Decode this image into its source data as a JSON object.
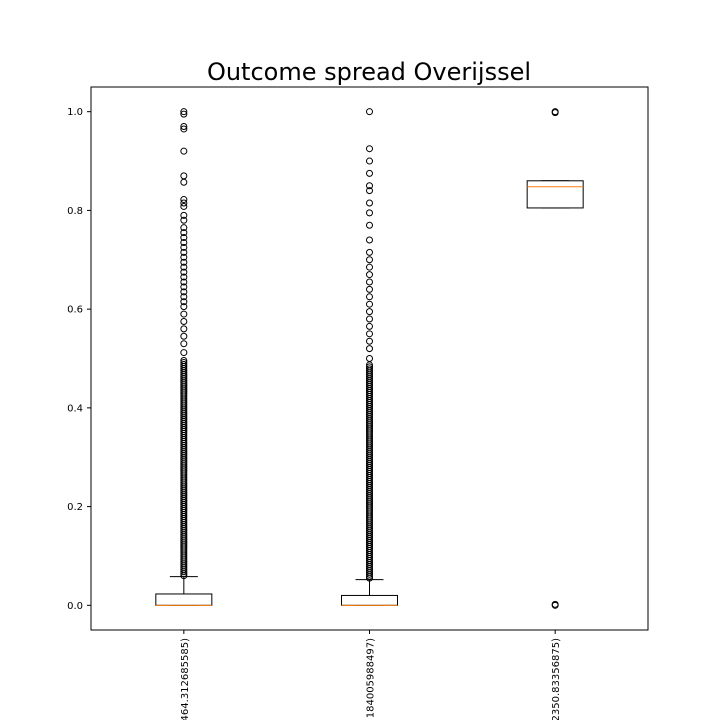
{
  "chart_data": {
    "type": "box",
    "title": "Outcome spread Overijssel",
    "xlabel": "",
    "ylabel": "",
    "ylim": [
      -0.05,
      1.05
    ],
    "yticks": [
      "0.0",
      "0.2",
      "0.4",
      "0.6",
      "0.8",
      "1.0"
    ],
    "grid": false,
    "categories": [
      "464.312685585)",
      "184005988497)",
      "2350.83356875)"
    ],
    "boxes": [
      {
        "q1": 0.0,
        "median": 0.0,
        "q3": 0.023,
        "whisker_low": 0.0,
        "whisker_high": 0.058,
        "fliers": [
          1.0,
          0.995,
          0.97,
          0.965,
          0.92,
          0.87,
          0.857,
          0.822,
          0.815,
          0.808,
          0.79,
          0.78,
          0.765,
          0.755,
          0.745,
          0.735,
          0.725,
          0.715,
          0.705,
          0.695,
          0.685,
          0.675,
          0.665,
          0.655,
          0.645,
          0.635,
          0.625,
          0.615,
          0.605,
          0.59,
          0.575,
          0.56,
          0.545,
          0.53,
          0.512
        ],
        "dense_flier_band": [
          0.06,
          0.5
        ]
      },
      {
        "q1": 0.0,
        "median": 0.0,
        "q3": 0.02,
        "whisker_low": 0.0,
        "whisker_high": 0.052,
        "fliers": [
          1.0,
          0.925,
          0.9,
          0.875,
          0.85,
          0.84,
          0.815,
          0.795,
          0.77,
          0.74,
          0.715,
          0.7,
          0.685,
          0.67,
          0.655,
          0.64,
          0.625,
          0.61,
          0.595,
          0.58,
          0.565,
          0.55,
          0.535,
          0.52,
          0.5
        ],
        "dense_flier_band": [
          0.055,
          0.49
        ]
      },
      {
        "q1": 0.805,
        "median": 0.848,
        "q3": 0.86,
        "whisker_low": 0.805,
        "whisker_high": 0.86,
        "fliers": [
          1.0,
          0.998,
          0.0,
          0.002
        ],
        "dense_flier_band": null
      }
    ]
  }
}
